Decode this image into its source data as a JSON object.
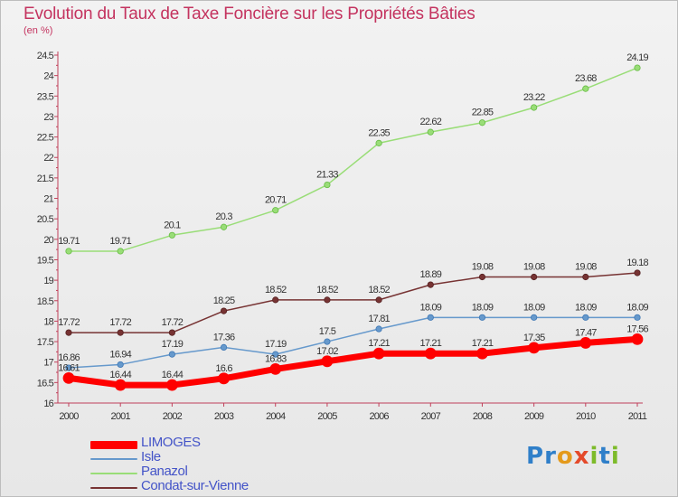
{
  "header": {
    "title": "Evolution du Taux de Taxe Foncière sur les Propriétés Bâties",
    "unit": "(en %)"
  },
  "logo": {
    "text": "Proxiti"
  },
  "chart_data": {
    "type": "line",
    "title": "Evolution du Taux de Taxe Foncière sur les Propriétés Bâties",
    "ylabel": "(en %)",
    "xlabel": "",
    "ylim": [
      16,
      24.5
    ],
    "yticks": [
      "16",
      "16.5",
      "17",
      "17.5",
      "18",
      "18.5",
      "19",
      "19.5",
      "20",
      "20.5",
      "21",
      "21.5",
      "22",
      "22.5",
      "23",
      "23.5",
      "24",
      "24.5"
    ],
    "categories": [
      "2000",
      "2001",
      "2002",
      "2003",
      "2004",
      "2005",
      "2006",
      "2007",
      "2008",
      "2009",
      "2010",
      "2011"
    ],
    "grid": false,
    "legend_position": "bottom-left",
    "series": [
      {
        "name": "LIMOGES",
        "color": "#ff0000",
        "width": 7,
        "marker": 6,
        "values": [
          16.61,
          16.44,
          16.44,
          16.6,
          16.83,
          17.02,
          17.21,
          17.21,
          17.21,
          17.35,
          17.47,
          17.56
        ],
        "labels": [
          "16.61",
          "16.44",
          "16.44",
          "16.6",
          "16.83",
          "17.02",
          "17.21",
          "17.21",
          "17.21",
          "17.35",
          "17.47",
          "17.56"
        ]
      },
      {
        "name": "Isle",
        "color": "#6699cc",
        "width": 1.5,
        "marker": 3.2,
        "values": [
          16.86,
          16.94,
          17.19,
          17.36,
          17.19,
          17.5,
          17.81,
          18.09,
          18.09,
          18.09,
          18.09,
          18.09
        ],
        "labels": [
          "16.86",
          "16.94",
          "17.19",
          "17.36",
          "17.19",
          "17.5",
          "17.81",
          "18.09",
          "18.09",
          "18.09",
          "18.09",
          "18.09"
        ]
      },
      {
        "name": "Panazol",
        "color": "#99dd77",
        "width": 1.5,
        "marker": 3.2,
        "values": [
          19.71,
          19.71,
          20.1,
          20.3,
          20.71,
          21.33,
          22.35,
          22.62,
          22.85,
          23.22,
          23.68,
          24.19
        ],
        "labels": [
          "19.71",
          "19.71",
          "20.1",
          "20.3",
          "20.71",
          "21.33",
          "22.35",
          "22.62",
          "22.85",
          "23.22",
          "23.68",
          "24.19"
        ]
      },
      {
        "name": "Condat-sur-Vienne",
        "color": "#773333",
        "width": 1.5,
        "marker": 3.2,
        "values": [
          17.72,
          17.72,
          17.72,
          18.25,
          18.52,
          18.52,
          18.52,
          18.89,
          19.08,
          19.08,
          19.08,
          19.18
        ],
        "labels": [
          "17.72",
          "17.72",
          "17.72",
          "18.25",
          "18.52",
          "18.52",
          "18.52",
          "18.89",
          "19.08",
          "19.08",
          "19.08",
          "19.18"
        ]
      }
    ]
  }
}
